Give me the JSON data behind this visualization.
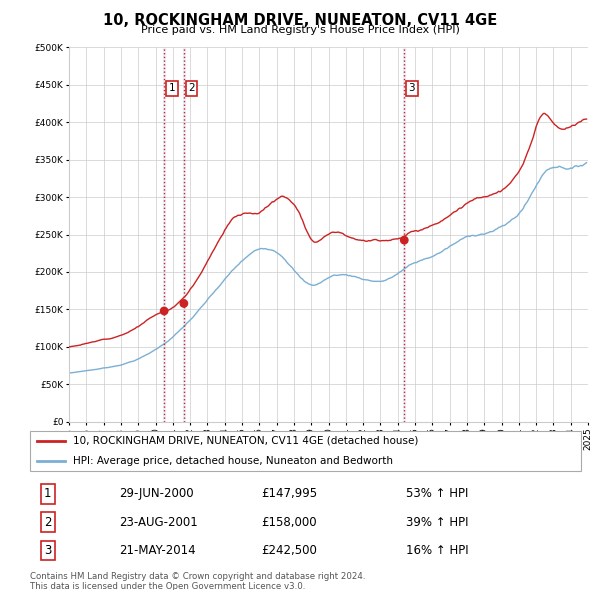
{
  "title": "10, ROCKINGHAM DRIVE, NUNEATON, CV11 4GE",
  "subtitle": "Price paid vs. HM Land Registry's House Price Index (HPI)",
  "legend_line1": "10, ROCKINGHAM DRIVE, NUNEATON, CV11 4GE (detached house)",
  "legend_line2": "HPI: Average price, detached house, Nuneaton and Bedworth",
  "footer1": "Contains HM Land Registry data © Crown copyright and database right 2024.",
  "footer2": "This data is licensed under the Open Government Licence v3.0.",
  "transactions": [
    {
      "num": 1,
      "date": "29-JUN-2000",
      "price": "£147,995",
      "pct": "53% ↑ HPI",
      "year": 2000.5
    },
    {
      "num": 2,
      "date": "23-AUG-2001",
      "price": "£158,000",
      "pct": "39% ↑ HPI",
      "year": 2001.64
    },
    {
      "num": 3,
      "date": "21-MAY-2014",
      "price": "£242,500",
      "pct": "16% ↑ HPI",
      "year": 2014.38
    }
  ],
  "transaction_values": [
    147995,
    158000,
    242500
  ],
  "hpi_color": "#7bafd4",
  "price_color": "#cc2222",
  "vline_color": "#cc2222",
  "shade_color": "#d8e8f5",
  "ylim": [
    0,
    500000
  ],
  "yticks": [
    0,
    50000,
    100000,
    150000,
    200000,
    250000,
    300000,
    350000,
    400000,
    450000,
    500000
  ],
  "grid_color": "#cccccc",
  "xlim_start": 1995.0,
  "xlim_end": 2025.0
}
